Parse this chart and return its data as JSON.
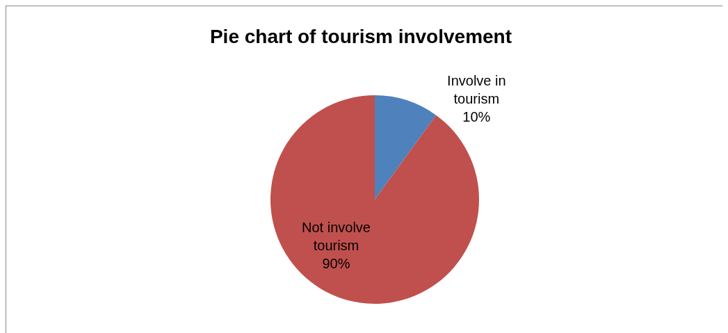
{
  "chart_data": {
    "type": "pie",
    "title": "Pie chart of tourism involvement",
    "categories": [
      "Involve in tourism",
      "Not involve tourism"
    ],
    "values": [
      10,
      90
    ],
    "colors": [
      "#4f81bd",
      "#c0504d"
    ],
    "value_labels": [
      "10%",
      "90%"
    ]
  }
}
